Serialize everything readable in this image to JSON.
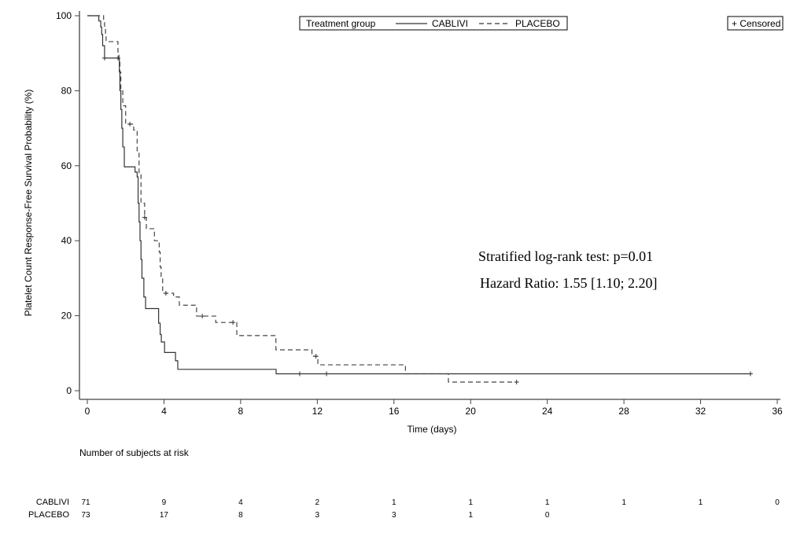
{
  "chart_data": {
    "type": "line",
    "subtype": "kaplan-meier",
    "xlabel": "Time (days)",
    "ylabel": "Platelet Count Response-Free Survival Probability (%)",
    "xlim": [
      0,
      36
    ],
    "ylim": [
      0,
      100
    ],
    "xticks": [
      "0",
      "4",
      "8",
      "12",
      "16",
      "20",
      "24",
      "28",
      "32",
      "36"
    ],
    "yticks": [
      "0",
      "20",
      "40",
      "60",
      "80",
      "100"
    ],
    "legend": {
      "title": "Treatment group",
      "placement": "top-center",
      "censored_label": "+ Censored"
    },
    "annotations": [
      "Stratified log-rank test: p=0.01",
      "Hazard Ratio: 1.55 [1.10; 2.20]"
    ],
    "series": [
      {
        "name": "CABLIVI",
        "style": "solid",
        "steps": [
          [
            0,
            100
          ],
          [
            0.6,
            98.6
          ],
          [
            0.7,
            97
          ],
          [
            0.75,
            95
          ],
          [
            0.8,
            92
          ],
          [
            0.9,
            88.7
          ],
          [
            1.67,
            85
          ],
          [
            1.7,
            80
          ],
          [
            1.75,
            75
          ],
          [
            1.8,
            70
          ],
          [
            1.85,
            65
          ],
          [
            1.93,
            59.7
          ],
          [
            2.49,
            58.3
          ],
          [
            2.6,
            57
          ],
          [
            2.65,
            50
          ],
          [
            2.7,
            45
          ],
          [
            2.75,
            40
          ],
          [
            2.8,
            35
          ],
          [
            2.85,
            30
          ],
          [
            2.95,
            25
          ],
          [
            3.04,
            21.9
          ],
          [
            3.72,
            18
          ],
          [
            3.8,
            15
          ],
          [
            3.86,
            13
          ],
          [
            4.03,
            10.2
          ],
          [
            4.6,
            8
          ],
          [
            4.72,
            5.7
          ],
          [
            9.85,
            4.5
          ],
          [
            34.6,
            4.5
          ]
        ],
        "censored": [
          [
            0.9,
            88.7
          ],
          [
            1.6,
            88.7
          ],
          [
            11.08,
            4.5
          ],
          [
            12.48,
            4.5
          ],
          [
            34.6,
            4.5
          ]
        ]
      },
      {
        "name": "PLACEBO",
        "style": "dashed",
        "steps": [
          [
            0,
            100
          ],
          [
            0.85,
            98.6
          ],
          [
            0.9,
            97
          ],
          [
            0.95,
            95
          ],
          [
            0.98,
            93.1
          ],
          [
            1.6,
            90
          ],
          [
            1.65,
            88
          ],
          [
            1.7,
            85
          ],
          [
            1.75,
            80
          ],
          [
            1.85,
            76
          ],
          [
            2.0,
            71.1
          ],
          [
            2.42,
            69.5
          ],
          [
            2.6,
            64
          ],
          [
            2.7,
            58
          ],
          [
            2.8,
            50
          ],
          [
            2.99,
            46.2
          ],
          [
            3.08,
            43.2
          ],
          [
            3.5,
            40
          ],
          [
            3.75,
            37
          ],
          [
            3.8,
            33
          ],
          [
            3.85,
            30
          ],
          [
            3.93,
            26.0
          ],
          [
            4.5,
            25
          ],
          [
            4.8,
            22.8
          ],
          [
            5.7,
            19.9
          ],
          [
            6.7,
            18.2
          ],
          [
            7.8,
            14.7
          ],
          [
            9.84,
            10.9
          ],
          [
            11.72,
            9.2
          ],
          [
            12.03,
            6.9
          ],
          [
            16.6,
            4.5
          ],
          [
            18.84,
            2.3
          ],
          [
            22.4,
            2.3
          ]
        ],
        "censored": [
          [
            2.22,
            71.1
          ],
          [
            2.99,
            46.2
          ],
          [
            4.1,
            26.0
          ],
          [
            6.0,
            19.9
          ],
          [
            7.6,
            18.2
          ],
          [
            11.93,
            9.2
          ],
          [
            22.4,
            2.3
          ]
        ]
      }
    ],
    "risk_table": {
      "title": "Number of subjects at risk",
      "times": [
        0,
        4,
        8,
        12,
        16,
        20,
        24,
        28,
        32,
        36
      ],
      "rows": [
        {
          "label": "CABLIVI",
          "values": [
            "71",
            "9",
            "4",
            "2",
            "1",
            "1",
            "1",
            "1",
            "1",
            "0"
          ]
        },
        {
          "label": "PLACEBO",
          "values": [
            "73",
            "17",
            "8",
            "3",
            "3",
            "1",
            "0"
          ]
        }
      ]
    }
  }
}
